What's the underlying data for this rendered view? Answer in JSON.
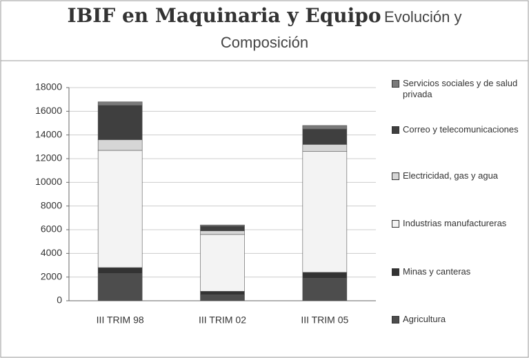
{
  "chart_data": {
    "type": "stacked_bar",
    "title": "IBIF en Maquinaria y Equipo",
    "subtitle": "Evolución y Composición",
    "categories": [
      "III TRIM 98",
      "III TRIM  02",
      "III TRIM 05"
    ],
    "series": [
      {
        "name": "Agricultura",
        "color": "#4d4d4d",
        "values": [
          2300,
          500,
          1900
        ]
      },
      {
        "name": "Minas y canteras",
        "color": "#333333",
        "values": [
          500,
          300,
          500
        ]
      },
      {
        "name": "Industrias manufactureras",
        "color": "#f3f3f3",
        "values": [
          9900,
          4800,
          10200
        ]
      },
      {
        "name": "Electricidad, gas y agua",
        "color": "#d6d6d6",
        "values": [
          900,
          300,
          600
        ]
      },
      {
        "name": "Correo  y telecomunicaciones",
        "color": "#3f3f3f",
        "values": [
          2900,
          400,
          1300
        ]
      },
      {
        "name": "Servicios sociales y  de salud privada",
        "color": "#7a7a7a",
        "values": [
          300,
          100,
          300
        ]
      }
    ],
    "ylim": [
      0,
      18000
    ],
    "yticks": [
      0,
      2000,
      4000,
      6000,
      8000,
      10000,
      12000,
      14000,
      16000,
      18000
    ],
    "grid": true,
    "legend": "right"
  }
}
